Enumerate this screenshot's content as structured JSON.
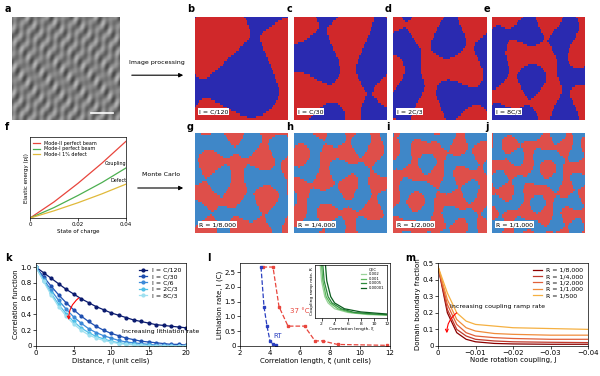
{
  "panel_labels": [
    "a",
    "b",
    "c",
    "d",
    "e",
    "f",
    "g",
    "h",
    "i",
    "j",
    "k",
    "l",
    "m"
  ],
  "flow_labels": [
    "Image processing",
    "Monte Carlo"
  ],
  "domain_maps": [
    {
      "colors": [
        "#2a2ab0",
        "#d0282a"
      ],
      "labels": [
        "I = C/120",
        "I = C/30",
        "I = 2C/3",
        "I = 8C/3"
      ]
    },
    {
      "colors": [
        "#3f87c8",
        "#de4f4a"
      ],
      "labels": [
        "R = 1/8,000",
        "R = 1/4,000",
        "R = 1/2,000",
        "R = 1/1,000"
      ]
    }
  ],
  "chart_data": [
    {
      "type": "line",
      "x_label": "State of charge",
      "y_label": "Elastic energy (pJ)",
      "x": [
        0,
        0.01,
        0.02,
        0.03,
        0.04
      ],
      "xlim": [
        0,
        0.04
      ],
      "xticks": [
        0,
        0.02,
        0.04
      ],
      "ylim": [
        0,
        1
      ],
      "tick_labels": "x",
      "legend": "upper left",
      "annotations": [
        "Coupling",
        "Defect"
      ],
      "series": [
        {
          "name": "Mode-II perfect beam",
          "color": "#e8453c",
          "values": [
            0,
            0.2,
            0.43,
            0.68,
            0.95
          ]
        },
        {
          "name": "Mode-I perfect beam",
          "color": "#4caf50",
          "values": [
            0,
            0.13,
            0.28,
            0.44,
            0.62
          ]
        },
        {
          "name": "Mode-I 1% defect",
          "color": "#e0b93a",
          "values": [
            0,
            0.09,
            0.19,
            0.3,
            0.42
          ]
        }
      ]
    },
    {
      "type": "line",
      "x_label": "Distance, r (unit cells)",
      "y_label": "Correlation function",
      "x": [
        0,
        1,
        2,
        3,
        4,
        5,
        6,
        7,
        8,
        9,
        10,
        11,
        12,
        13,
        14,
        15,
        16,
        17,
        18,
        19,
        20
      ],
      "xlim": [
        0,
        20
      ],
      "xticks": [
        0,
        5,
        10,
        15,
        20
      ],
      "ylim": [
        0,
        1.05
      ],
      "yticks": [
        0,
        0.2,
        0.4,
        0.6,
        0.8,
        1.0
      ],
      "legend": "upper right",
      "annotations": [
        "Increasing lithiation rate"
      ],
      "series": [
        {
          "name": "I = C/120",
          "color": "#0a1a6e",
          "marker": "circle",
          "values": [
            1,
            0.93,
            0.86,
            0.79,
            0.72,
            0.66,
            0.6,
            0.55,
            0.5,
            0.46,
            0.42,
            0.39,
            0.36,
            0.33,
            0.31,
            0.29,
            0.27,
            0.26,
            0.25,
            0.24,
            0.23
          ]
        },
        {
          "name": "I = C/30",
          "color": "#1f4fb0",
          "marker": "circle",
          "values": [
            1,
            0.88,
            0.76,
            0.65,
            0.55,
            0.46,
            0.38,
            0.31,
            0.25,
            0.2,
            0.16,
            0.13,
            0.1,
            0.08,
            0.06,
            0.05,
            0.04,
            0.03,
            0.02,
            0.02,
            0.01
          ]
        },
        {
          "name": "I = C/6",
          "color": "#3c8ad8",
          "marker": "circle",
          "values": [
            1,
            0.85,
            0.71,
            0.58,
            0.47,
            0.37,
            0.29,
            0.22,
            0.17,
            0.13,
            0.1,
            0.07,
            0.05,
            0.04,
            0.03,
            0.02,
            0.01,
            0.01,
            0.01,
            0,
            0
          ]
        },
        {
          "name": "I = 2C/3",
          "color": "#4fc0e8",
          "marker": "circle",
          "values": [
            1,
            0.83,
            0.67,
            0.53,
            0.41,
            0.31,
            0.23,
            0.17,
            0.12,
            0.09,
            0.06,
            0.04,
            0.03,
            0.02,
            0.01,
            0.01,
            0,
            0,
            0,
            0,
            0
          ]
        },
        {
          "name": "I = 8C/3",
          "color": "#9fe0f0",
          "marker": "circle",
          "values": [
            1,
            0.82,
            0.65,
            0.5,
            0.38,
            0.28,
            0.2,
            0.14,
            0.1,
            0.07,
            0.05,
            0.03,
            0.02,
            0.01,
            0.01,
            0,
            0,
            0,
            0,
            0,
            0
          ]
        }
      ]
    },
    {
      "type": "line",
      "x_label": "Correlation length, ξ (unit cells)",
      "y_label": "Lithiation rate, I (C)",
      "xlim": [
        2,
        12
      ],
      "xticks": [
        2,
        4,
        6,
        8,
        10,
        12
      ],
      "ylim": [
        0,
        2.8
      ],
      "yticks": [
        0,
        0.5,
        1.0,
        1.5,
        2.0,
        2.5
      ],
      "series": [
        {
          "name": "37 °C",
          "color": "#e8453c",
          "marker": "square",
          "line_style": "dashed",
          "x": [
            3.5,
            4.2,
            4.6,
            5.2,
            6.3,
            7.0,
            7.5,
            8.5,
            11.8
          ],
          "values": [
            2.67,
            2.67,
            1.33,
            0.67,
            0.67,
            0.17,
            0.17,
            0.05,
            0.02
          ]
        },
        {
          "name": "RT",
          "color": "#2a3fc0",
          "marker": "square",
          "line_style": "dashed",
          "x": [
            3.4,
            3.6,
            3.8,
            4.0,
            4.2,
            4.4
          ],
          "values": [
            2.67,
            1.33,
            0.67,
            0.17,
            0.05,
            0.02
          ]
        }
      ]
    },
    {
      "type": "line",
      "x_label": "Correlation length, ξ",
      "y_label": "Coupling ramp rate, R",
      "xlim": [
        1,
        12
      ],
      "xticks": [
        2,
        4,
        6,
        8,
        10,
        12
      ],
      "ylim": [
        0,
        1
      ],
      "tick_labels": "x",
      "legend": "upper right",
      "legend_title": "QEC",
      "series": [
        {
          "name": "0.002",
          "color": "#9ad29a",
          "x": [
            1.8,
            2.0,
            2.5,
            3.0,
            4.0,
            6.0,
            9.0,
            12.0
          ],
          "values": [
            1,
            0.7,
            0.4,
            0.28,
            0.17,
            0.1,
            0.06,
            0.05
          ]
        },
        {
          "name": "0.001",
          "color": "#5cb85c",
          "x": [
            2.0,
            2.2,
            2.7,
            3.3,
            4.5,
            6.5,
            9.0,
            12.0
          ],
          "values": [
            1,
            0.7,
            0.4,
            0.28,
            0.17,
            0.1,
            0.07,
            0.05
          ]
        },
        {
          "name": "0.0005",
          "color": "#2e8b3d",
          "x": [
            2.2,
            2.4,
            3.0,
            3.6,
            5.0,
            7.0,
            10.0,
            12.0
          ],
          "values": [
            1,
            0.7,
            0.4,
            0.28,
            0.17,
            0.1,
            0.07,
            0.06
          ]
        },
        {
          "name": "0.00001",
          "color": "#0b5d1e",
          "x": [
            2.6,
            2.8,
            3.4,
            4.0,
            5.5,
            8.0,
            11.0,
            12.0
          ],
          "values": [
            1,
            0.7,
            0.4,
            0.28,
            0.17,
            0.11,
            0.08,
            0.07
          ]
        }
      ]
    },
    {
      "type": "line",
      "x_label": "Node rotation coupling, J",
      "y_label": "Domain boundary fraction",
      "x": [
        0,
        -0.0025,
        -0.005,
        -0.0075,
        -0.01,
        -0.015,
        -0.02,
        -0.03,
        -0.04
      ],
      "xlim": [
        0,
        -0.04
      ],
      "xticks": [
        0,
        {
          "value": -0.01,
          "label": "−0.01"
        },
        {
          "value": -0.02,
          "label": "−0.02"
        },
        {
          "value": -0.03,
          "label": "−0.03"
        },
        {
          "value": -0.04,
          "label": "−0.04"
        }
      ],
      "ylim": [
        0,
        0.5
      ],
      "yticks": [
        0,
        0.1,
        0.2,
        0.3,
        0.4,
        0.5
      ],
      "legend": "upper right",
      "annotations": [
        "Increasing coupling ramp rate"
      ],
      "series": [
        {
          "name": "R = 1/8,000",
          "color": "#8b0000",
          "values": [
            0.48,
            0.2,
            0.08,
            0.04,
            0.025,
            0.015,
            0.012,
            0.01,
            0.01
          ]
        },
        {
          "name": "R = 1/4,000",
          "color": "#c0392b",
          "values": [
            0.48,
            0.22,
            0.1,
            0.06,
            0.04,
            0.03,
            0.025,
            0.022,
            0.02
          ]
        },
        {
          "name": "R = 1/2,000",
          "color": "#e0603a",
          "values": [
            0.48,
            0.25,
            0.13,
            0.08,
            0.06,
            0.05,
            0.045,
            0.04,
            0.04
          ]
        },
        {
          "name": "R = 1/1,000",
          "color": "#f08c3c",
          "values": [
            0.48,
            0.28,
            0.16,
            0.11,
            0.09,
            0.075,
            0.07,
            0.065,
            0.065
          ]
        },
        {
          "name": "R = 1/500",
          "color": "#f5b041",
          "values": [
            0.48,
            0.32,
            0.2,
            0.15,
            0.13,
            0.12,
            0.11,
            0.105,
            0.1
          ]
        }
      ]
    }
  ]
}
